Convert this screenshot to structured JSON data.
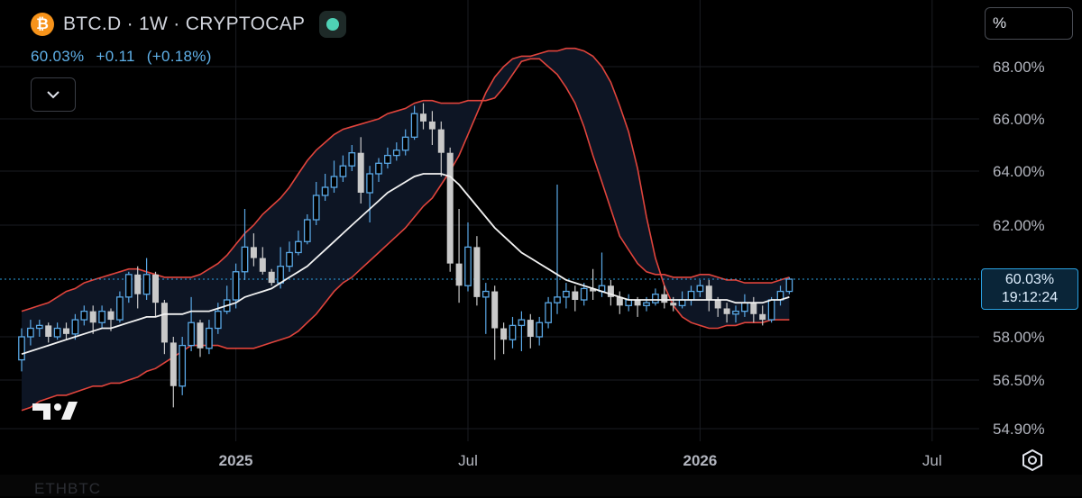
{
  "header": {
    "coin_glyph": "₿",
    "title": "BTC.D · 1W · CRYPTOCAP",
    "price": "60.03%",
    "change": "+0.11",
    "change_pct": "(+0.18%)"
  },
  "scale_button": "%",
  "price_tag": {
    "value": "60.03%",
    "countdown": "19:12:24"
  },
  "bottom_label": "ETHBTC",
  "colors": {
    "up_candle": "#5aa8e6",
    "down_candle": "#c9c9c9",
    "band": "#e0443c",
    "ma": "#f2f2f2",
    "fill": "#0d1524",
    "grid": "#1a1c22",
    "accent": "#2aa0e0"
  },
  "chart_data": {
    "type": "candlestick",
    "y_ticks": [
      "68.00%",
      "66.00%",
      "64.00%",
      "62.00%",
      "58.00%",
      "56.50%",
      "54.90%"
    ],
    "x_ticks": [
      {
        "label": "2025",
        "bar": 24
      },
      {
        "label": "Jul",
        "bar": 50
      },
      {
        "label": "2026",
        "bar": 76
      },
      {
        "label": "Jul",
        "bar": 102
      }
    ],
    "last_price": 60.03,
    "candles": [
      [
        57.2,
        58.0,
        56.8,
        58.3
      ],
      [
        58.0,
        58.3,
        57.7,
        58.6
      ],
      [
        58.3,
        58.4,
        58.0,
        58.6
      ],
      [
        58.4,
        58.0,
        57.8,
        58.5
      ],
      [
        58.0,
        58.3,
        57.9,
        58.5
      ],
      [
        58.3,
        58.1,
        57.9,
        58.5
      ],
      [
        58.1,
        58.6,
        57.9,
        58.8
      ],
      [
        58.6,
        58.9,
        58.4,
        59.1
      ],
      [
        58.9,
        58.5,
        58.1,
        59.1
      ],
      [
        58.5,
        58.9,
        58.3,
        59.1
      ],
      [
        58.9,
        58.6,
        58.2,
        59.0
      ],
      [
        58.6,
        59.4,
        58.5,
        59.6
      ],
      [
        59.4,
        60.2,
        59.2,
        60.3
      ],
      [
        60.2,
        59.5,
        59.0,
        60.5
      ],
      [
        59.5,
        60.2,
        59.3,
        60.8
      ],
      [
        60.2,
        59.2,
        58.7,
        60.3
      ],
      [
        59.2,
        57.8,
        57.4,
        59.3
      ],
      [
        57.8,
        56.3,
        55.6,
        58.0
      ],
      [
        56.3,
        57.7,
        56.0,
        58.0
      ],
      [
        57.7,
        58.5,
        57.5,
        59.4
      ],
      [
        58.5,
        57.6,
        57.3,
        58.6
      ],
      [
        57.6,
        58.3,
        57.4,
        58.6
      ],
      [
        58.3,
        58.9,
        58.1,
        59.2
      ],
      [
        58.9,
        59.3,
        58.8,
        59.8
      ],
      [
        59.3,
        60.3,
        59.0,
        60.6
      ],
      [
        60.3,
        61.2,
        60.0,
        62.6
      ],
      [
        61.2,
        60.8,
        60.5,
        61.7
      ],
      [
        60.8,
        60.3,
        60.2,
        61.2
      ],
      [
        60.3,
        59.9,
        59.8,
        60.4
      ],
      [
        59.9,
        60.5,
        59.7,
        61.2
      ],
      [
        60.5,
        61.0,
        60.3,
        61.4
      ],
      [
        61.0,
        61.4,
        60.9,
        61.8
      ],
      [
        61.4,
        62.2,
        61.3,
        62.4
      ],
      [
        62.2,
        63.1,
        62.0,
        63.6
      ],
      [
        63.1,
        63.4,
        62.9,
        63.9
      ],
      [
        63.4,
        63.8,
        63.2,
        64.4
      ],
      [
        63.8,
        64.2,
        63.6,
        64.6
      ],
      [
        64.2,
        64.7,
        64.0,
        65.0
      ],
      [
        64.7,
        63.2,
        62.8,
        65.3
      ],
      [
        63.2,
        63.9,
        62.1,
        64.2
      ],
      [
        63.9,
        64.3,
        63.6,
        64.5
      ],
      [
        64.3,
        64.6,
        64.1,
        64.9
      ],
      [
        64.6,
        64.8,
        64.4,
        65.1
      ],
      [
        64.8,
        65.3,
        64.6,
        65.6
      ],
      [
        65.3,
        66.2,
        65.2,
        66.5
      ],
      [
        66.2,
        65.9,
        65.6,
        66.6
      ],
      [
        65.9,
        65.6,
        65.0,
        66.3
      ],
      [
        65.6,
        64.7,
        63.8,
        65.9
      ],
      [
        64.7,
        60.6,
        60.3,
        64.9
      ],
      [
        60.6,
        59.8,
        59.2,
        62.6
      ],
      [
        59.8,
        61.2,
        59.6,
        62.1
      ],
      [
        61.2,
        59.4,
        59.1,
        61.6
      ],
      [
        59.4,
        59.6,
        58.1,
        59.9
      ],
      [
        59.6,
        58.3,
        57.2,
        59.8
      ],
      [
        58.3,
        57.9,
        57.4,
        58.5
      ],
      [
        57.9,
        58.4,
        57.6,
        58.7
      ],
      [
        58.4,
        58.6,
        57.5,
        58.9
      ],
      [
        58.6,
        58.0,
        57.6,
        58.8
      ],
      [
        58.0,
        58.5,
        57.7,
        58.7
      ],
      [
        58.5,
        59.2,
        58.3,
        59.4
      ],
      [
        59.2,
        59.4,
        58.8,
        63.5
      ],
      [
        59.4,
        59.6,
        59.0,
        59.9
      ],
      [
        59.6,
        59.3,
        58.9,
        59.8
      ],
      [
        59.3,
        59.7,
        59.1,
        59.9
      ],
      [
        59.7,
        59.6,
        59.3,
        60.4
      ],
      [
        59.6,
        59.8,
        59.4,
        61.0
      ],
      [
        59.8,
        59.4,
        59.1,
        60.0
      ],
      [
        59.4,
        59.1,
        58.8,
        59.6
      ],
      [
        59.1,
        59.3,
        58.9,
        59.5
      ],
      [
        59.3,
        59.1,
        58.7,
        59.4
      ],
      [
        59.1,
        59.2,
        58.9,
        59.4
      ],
      [
        59.2,
        59.5,
        59.1,
        59.7
      ],
      [
        59.5,
        59.2,
        59.0,
        59.8
      ],
      [
        59.2,
        59.1,
        58.9,
        59.4
      ],
      [
        59.1,
        59.3,
        59.0,
        59.6
      ],
      [
        59.3,
        59.6,
        59.1,
        59.8
      ],
      [
        59.6,
        59.8,
        59.4,
        60.0
      ],
      [
        59.8,
        59.3,
        58.9,
        60.0
      ],
      [
        59.3,
        59.0,
        58.7,
        59.4
      ],
      [
        59.0,
        58.8,
        58.5,
        59.2
      ],
      [
        58.8,
        58.9,
        58.5,
        59.1
      ],
      [
        58.9,
        59.2,
        58.7,
        59.5
      ],
      [
        59.2,
        58.8,
        58.5,
        59.4
      ],
      [
        58.8,
        58.6,
        58.4,
        59.1
      ],
      [
        58.6,
        59.3,
        58.5,
        59.4
      ],
      [
        59.3,
        59.6,
        59.1,
        59.8
      ],
      [
        59.6,
        60.03,
        59.5,
        60.1
      ]
    ],
    "ma": [
      57.4,
      57.5,
      57.6,
      57.7,
      57.8,
      57.9,
      58.0,
      58.1,
      58.2,
      58.3,
      58.3,
      58.4,
      58.5,
      58.6,
      58.7,
      58.7,
      58.8,
      58.8,
      58.8,
      58.9,
      58.9,
      58.9,
      59.0,
      59.1,
      59.2,
      59.4,
      59.5,
      59.6,
      59.7,
      59.9,
      60.1,
      60.3,
      60.5,
      60.8,
      61.1,
      61.4,
      61.7,
      62.0,
      62.3,
      62.6,
      62.9,
      63.2,
      63.4,
      63.6,
      63.8,
      63.9,
      63.9,
      63.9,
      63.8,
      63.5,
      63.1,
      62.7,
      62.3,
      61.9,
      61.6,
      61.3,
      61.0,
      60.8,
      60.6,
      60.4,
      60.2,
      60.0,
      59.9,
      59.8,
      59.7,
      59.6,
      59.5,
      59.4,
      59.3,
      59.3,
      59.3,
      59.3,
      59.3,
      59.3,
      59.3,
      59.3,
      59.3,
      59.3,
      59.3,
      59.3,
      59.2,
      59.2,
      59.2,
      59.2,
      59.3,
      59.3,
      59.4
    ],
    "band_upper": [
      58.9,
      59.0,
      59.1,
      59.2,
      59.4,
      59.6,
      59.7,
      59.9,
      60.0,
      60.1,
      60.2,
      60.3,
      60.4,
      60.4,
      60.3,
      60.2,
      60.1,
      60.1,
      60.1,
      60.1,
      60.2,
      60.4,
      60.6,
      60.9,
      61.3,
      61.7,
      62.0,
      62.4,
      62.7,
      63.0,
      63.4,
      63.9,
      64.4,
      64.8,
      65.1,
      65.4,
      65.6,
      65.7,
      65.8,
      65.9,
      66.0,
      66.2,
      66.3,
      66.4,
      66.6,
      66.7,
      66.7,
      66.6,
      66.6,
      66.6,
      66.7,
      66.7,
      66.7,
      66.8,
      67.2,
      67.7,
      68.2,
      68.3,
      68.3,
      68.0,
      67.7,
      67.2,
      66.6,
      65.7,
      64.6,
      63.6,
      62.6,
      61.6,
      61.1,
      60.6,
      60.3,
      60.2,
      60.2,
      60.1,
      60.1,
      60.1,
      60.2,
      60.2,
      60.1,
      60.0,
      60.0,
      59.9,
      59.9,
      59.9,
      59.9,
      60.0,
      60.1
    ],
    "band_lower": [
      55.5,
      55.6,
      55.8,
      55.9,
      56.0,
      56.0,
      56.1,
      56.2,
      56.3,
      56.3,
      56.4,
      56.4,
      56.5,
      56.6,
      56.8,
      56.9,
      57.1,
      57.3,
      57.5,
      57.7,
      57.7,
      57.7,
      57.7,
      57.6,
      57.6,
      57.6,
      57.6,
      57.7,
      57.8,
      57.9,
      58.0,
      58.2,
      58.5,
      58.8,
      59.2,
      59.6,
      59.9,
      60.1,
      60.4,
      60.7,
      61.0,
      61.3,
      61.6,
      61.9,
      62.3,
      62.7,
      63.0,
      63.5,
      64.0,
      64.6,
      65.4,
      66.2,
      67.0,
      67.6,
      68.0,
      68.3,
      68.4,
      68.4,
      68.5,
      68.6,
      68.6,
      68.7,
      68.7,
      68.6,
      68.4,
      68.0,
      67.4,
      66.5,
      65.5,
      64.1,
      62.3,
      60.8,
      59.8,
      59.1,
      58.7,
      58.5,
      58.4,
      58.3,
      58.3,
      58.4,
      58.4,
      58.5,
      58.5,
      58.5,
      58.6,
      58.6,
      58.6
    ]
  }
}
